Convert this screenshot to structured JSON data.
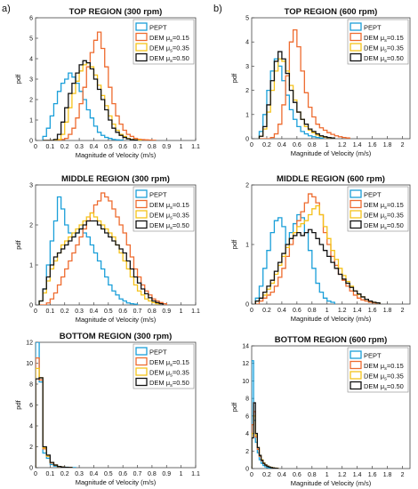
{
  "figure": {
    "panel_labels": [
      "a)",
      "b)"
    ]
  },
  "style": {
    "colors": {
      "PEPT": "#1a9fd9",
      "DEM015": "#ee6b2f",
      "DEM035": "#f5c21a",
      "DEM050": "#111111"
    }
  },
  "legend_entries": [
    {
      "key": "PEPT",
      "prefix": "PEPT",
      "sub": "",
      "suffix": ""
    },
    {
      "key": "DEM015",
      "prefix": "DEM μ",
      "sub": "s",
      "suffix": "=0.15"
    },
    {
      "key": "DEM035",
      "prefix": "DEM μ",
      "sub": "s",
      "suffix": "=0.35"
    },
    {
      "key": "DEM050",
      "prefix": "DEM μ",
      "sub": "s",
      "suffix": "=0.50"
    }
  ],
  "chart_data": [
    {
      "type": "line",
      "step": true,
      "title": "TOP REGION (300 rpm)",
      "xlabel": "Magnitude of Velocity (m/s)",
      "ylabel": "pdf",
      "xlim": [
        0,
        1.1
      ],
      "ylim": [
        0,
        6
      ],
      "xticks": [
        "0",
        "0.1",
        "0.2",
        "0.3",
        "0.4",
        "0.5",
        "0.6",
        "0.7",
        "0.8",
        "0.9",
        "1",
        "1.1"
      ],
      "yticks": [
        "0",
        "1",
        "2",
        "3",
        "4",
        "5",
        "6"
      ],
      "legend": "top-right",
      "bin_start": 0.05,
      "bin_width": 0.025,
      "series": [
        {
          "key": "PEPT",
          "values": [
            0.2,
            0.6,
            1.2,
            1.8,
            2.4,
            2.8,
            3.0,
            3.3,
            3.1,
            2.8,
            2.4,
            2.0,
            1.5,
            1.1,
            0.7,
            0.4,
            0.25,
            0.15,
            0.1,
            0.05,
            0.03,
            0.02
          ]
        },
        {
          "key": "DEM015",
          "values": [
            0,
            0,
            0,
            0,
            0,
            0.05,
            0.1,
            0.3,
            0.6,
            1.1,
            1.8,
            2.6,
            3.6,
            4.3,
            4.9,
            5.3,
            4.5,
            3.6,
            2.6,
            1.8,
            1.2,
            0.8,
            0.5,
            0.3,
            0.2,
            0.1,
            0.06,
            0.04,
            0.03,
            0.02,
            0.01
          ]
        },
        {
          "key": "DEM035",
          "values": [
            0,
            0,
            0,
            0,
            0.05,
            0.3,
            0.9,
            1.6,
            2.3,
            2.9,
            3.4,
            3.7,
            3.8,
            3.6,
            3.2,
            2.7,
            2.2,
            1.7,
            1.2,
            0.8,
            0.5,
            0.3,
            0.2,
            0.1,
            0.05,
            0.03,
            0.02
          ]
        },
        {
          "key": "DEM050",
          "values": [
            0,
            0,
            0,
            0.05,
            0.3,
            0.9,
            1.6,
            2.3,
            2.8,
            3.3,
            3.7,
            3.9,
            3.8,
            3.5,
            3.0,
            2.5,
            2.0,
            1.5,
            1.0,
            0.6,
            0.4,
            0.25,
            0.15,
            0.08,
            0.04,
            0.02
          ]
        }
      ]
    },
    {
      "type": "line",
      "step": true,
      "title": "TOP REGION (600 rpm)",
      "xlabel": "Magnitude of Velocity (m/s)",
      "ylabel": "pdf",
      "xlim": [
        0,
        2.1
      ],
      "ylim": [
        0,
        5
      ],
      "xticks": [
        "0",
        "0.2",
        "0.4",
        "0.6",
        "0.8",
        "1",
        "1.2",
        "1.4",
        "1.6",
        "1.8",
        "2"
      ],
      "yticks": [
        "0",
        "1",
        "2",
        "3",
        "4",
        "5"
      ],
      "legend": "top-right",
      "bin_start": 0.1,
      "bin_width": 0.05,
      "series": [
        {
          "key": "PEPT",
          "values": [
            0.3,
            1.0,
            2.0,
            2.8,
            3.3,
            3.0,
            2.4,
            1.8,
            1.2,
            0.8,
            0.5,
            0.3,
            0.2,
            0.12,
            0.08,
            0.05,
            0.03
          ]
        },
        {
          "key": "DEM015",
          "values": [
            0,
            0,
            0,
            0.05,
            0.2,
            0.6,
            1.4,
            2.6,
            4.0,
            4.5,
            3.8,
            2.8,
            1.9,
            1.3,
            0.9,
            0.6,
            0.45,
            0.35,
            0.25,
            0.18,
            0.12,
            0.08,
            0.05,
            0.03
          ]
        },
        {
          "key": "DEM035",
          "values": [
            0.1,
            0.4,
            1.1,
            2.0,
            2.8,
            3.3,
            3.2,
            2.8,
            2.2,
            1.6,
            1.1,
            0.8,
            0.5,
            0.35,
            0.25,
            0.15,
            0.1,
            0.06,
            0.04,
            0.02
          ]
        },
        {
          "key": "DEM050",
          "values": [
            0.1,
            0.5,
            1.4,
            2.4,
            3.2,
            3.6,
            3.3,
            2.7,
            2.0,
            1.5,
            1.1,
            0.8,
            0.6,
            0.4,
            0.3,
            0.2,
            0.12,
            0.08,
            0.05,
            0.03
          ]
        }
      ]
    },
    {
      "type": "line",
      "step": true,
      "title": "MIDDLE REGION (300 rpm)",
      "xlabel": "Magnitude of Velocity (m/s)",
      "ylabel": "pdf",
      "xlim": [
        0,
        1.1
      ],
      "ylim": [
        0,
        3
      ],
      "xticks": [
        "0",
        "0.1",
        "0.2",
        "0.3",
        "0.4",
        "0.5",
        "0.6",
        "0.7",
        "0.8",
        "0.9",
        "1",
        "1.1"
      ],
      "yticks": [
        "0",
        "1",
        "2",
        "3"
      ],
      "legend": "top-right",
      "bin_start": 0.025,
      "bin_width": 0.025,
      "series": [
        {
          "key": "PEPT",
          "values": [
            0.1,
            0.4,
            1.0,
            1.6,
            2.1,
            2.7,
            2.4,
            2.0,
            1.8,
            1.7,
            1.8,
            1.9,
            1.8,
            1.7,
            1.5,
            1.3,
            1.1,
            0.9,
            0.7,
            0.5,
            0.35,
            0.25,
            0.15,
            0.1,
            0.05,
            0.03,
            0.02
          ]
        },
        {
          "key": "DEM015",
          "values": [
            0,
            0,
            0.05,
            0.15,
            0.3,
            0.5,
            0.7,
            0.9,
            1.1,
            1.3,
            1.5,
            1.7,
            1.9,
            2.1,
            2.3,
            2.5,
            2.6,
            2.8,
            2.7,
            2.6,
            2.4,
            2.2,
            2.0,
            1.8,
            1.5,
            1.2,
            0.9,
            0.7,
            0.5,
            0.35,
            0.25,
            0.15,
            0.1,
            0.06,
            0.03
          ]
        },
        {
          "key": "DEM035",
          "values": [
            0.1,
            0.3,
            0.6,
            0.9,
            1.1,
            1.3,
            1.5,
            1.6,
            1.7,
            1.8,
            1.9,
            2.0,
            2.1,
            2.2,
            2.3,
            2.2,
            2.1,
            2.0,
            1.9,
            1.8,
            1.7,
            1.5,
            1.3,
            1.1,
            0.9,
            0.7,
            0.5,
            0.35,
            0.25,
            0.15,
            0.1,
            0.06,
            0.03
          ]
        },
        {
          "key": "DEM050",
          "values": [
            0.1,
            0.4,
            0.7,
            1.0,
            1.2,
            1.3,
            1.4,
            1.5,
            1.6,
            1.7,
            1.8,
            1.9,
            2.0,
            2.1,
            2.1,
            2.1,
            2.0,
            1.9,
            1.8,
            1.7,
            1.6,
            1.5,
            1.4,
            1.3,
            1.1,
            0.9,
            0.7,
            0.55,
            0.4,
            0.28,
            0.18,
            0.1,
            0.06,
            0.03
          ]
        }
      ]
    },
    {
      "type": "line",
      "step": true,
      "title": "MIDDLE REGION (600 rpm)",
      "xlabel": "Magnitude of Velocity (m/s)",
      "ylabel": "pdf",
      "xlim": [
        0,
        2.1
      ],
      "ylim": [
        0,
        2
      ],
      "xticks": [
        "0",
        "0.2",
        "0.4",
        "0.6",
        "0.8",
        "1",
        "1.2",
        "1.4",
        "1.6",
        "1.8",
        "2"
      ],
      "yticks": [
        "0",
        "1",
        "2"
      ],
      "legend": "top-right",
      "bin_start": 0.05,
      "bin_width": 0.05,
      "series": [
        {
          "key": "PEPT",
          "values": [
            0.1,
            0.3,
            0.6,
            0.9,
            1.2,
            1.4,
            1.45,
            1.3,
            1.0,
            1.2,
            1.35,
            1.5,
            1.45,
            1.2,
            0.9,
            0.6,
            0.35,
            0.2,
            0.1,
            0.05,
            0.03
          ]
        },
        {
          "key": "DEM015",
          "values": [
            0,
            0.05,
            0.1,
            0.15,
            0.2,
            0.3,
            0.45,
            0.6,
            0.8,
            1.0,
            1.2,
            1.4,
            1.55,
            1.7,
            1.85,
            1.8,
            1.7,
            1.5,
            1.2,
            1.0,
            0.8,
            0.65,
            0.5,
            0.4,
            0.3,
            0.22,
            0.15,
            0.1,
            0.07,
            0.05,
            0.03,
            0.02
          ]
        },
        {
          "key": "DEM035",
          "values": [
            0.05,
            0.1,
            0.15,
            0.25,
            0.35,
            0.5,
            0.65,
            0.8,
            0.95,
            1.1,
            1.2,
            1.3,
            1.35,
            1.4,
            1.5,
            1.6,
            1.65,
            1.5,
            1.3,
            1.1,
            0.9,
            0.75,
            0.6,
            0.48,
            0.38,
            0.3,
            0.22,
            0.16,
            0.12,
            0.08,
            0.05,
            0.03,
            0.02
          ]
        },
        {
          "key": "DEM050",
          "values": [
            0.05,
            0.1,
            0.2,
            0.3,
            0.4,
            0.55,
            0.7,
            0.85,
            1.0,
            1.1,
            1.15,
            1.2,
            1.15,
            1.2,
            1.25,
            1.2,
            1.1,
            1.0,
            0.9,
            0.8,
            0.7,
            0.6,
            0.5,
            0.42,
            0.35,
            0.28,
            0.22,
            0.17,
            0.12,
            0.08,
            0.05,
            0.03,
            0.02
          ]
        }
      ]
    },
    {
      "type": "line",
      "step": true,
      "title": "BOTTOM REGION (300 rpm)",
      "xlabel": "Magnitude of Velocity (m/s)",
      "ylabel": "pdf",
      "xlim": [
        0,
        1.1
      ],
      "ylim": [
        0,
        12
      ],
      "xticks": [
        "0",
        "0.1",
        "0.2",
        "0.3",
        "0.4",
        "0.5",
        "0.6",
        "0.7",
        "0.8",
        "0.9",
        "1",
        "1.1"
      ],
      "yticks": [
        "0",
        "2",
        "4",
        "6",
        "8",
        "10",
        "12"
      ],
      "legend": "top-right",
      "bin_start": 0,
      "bin_width": 0.025,
      "series": [
        {
          "key": "PEPT",
          "values": [
            12.0,
            8.2,
            1.4,
            0.9,
            0.3,
            0.15,
            0.1,
            0.06,
            0.04,
            0.02,
            0.01
          ]
        },
        {
          "key": "DEM015",
          "values": [
            10.5,
            8.4,
            1.8,
            1.1,
            0.45,
            0.25,
            0.12,
            0.06,
            0.03,
            0.02
          ]
        },
        {
          "key": "DEM035",
          "values": [
            9.5,
            8.6,
            1.9,
            1.1,
            0.5,
            0.25,
            0.12,
            0.06,
            0.03,
            0.02
          ]
        },
        {
          "key": "DEM050",
          "values": [
            8.5,
            8.6,
            2.0,
            1.2,
            0.5,
            0.25,
            0.12,
            0.06,
            0.03,
            0.02
          ]
        }
      ]
    },
    {
      "type": "line",
      "step": true,
      "title": "BOTTOM REGION (600 rpm)",
      "xlabel": "Magnitude of Velocity (m/s)",
      "ylabel": "pdf",
      "xlim": [
        0,
        2.1
      ],
      "ylim": [
        0,
        14
      ],
      "xticks": [
        "0",
        "0.2",
        "0.4",
        "0.6",
        "0.8",
        "1",
        "1.2",
        "1.4",
        "1.6",
        "1.8",
        "2"
      ],
      "yticks": [
        "0",
        "2",
        "4",
        "6",
        "8",
        "10",
        "12",
        "14"
      ],
      "legend": "top-right",
      "bin_start": 0,
      "bin_width": 0.025,
      "series": [
        {
          "key": "PEPT",
          "values": [
            12.3,
            5.5,
            3.0,
            1.8,
            1.0,
            0.6,
            0.35,
            0.2,
            0.12,
            0.07,
            0.04,
            0.02
          ]
        },
        {
          "key": "DEM015",
          "values": [
            5.0,
            6.5,
            3.6,
            2.2,
            1.4,
            0.9,
            0.6,
            0.4,
            0.28,
            0.18,
            0.12,
            0.08,
            0.05,
            0.03
          ]
        },
        {
          "key": "DEM035",
          "values": [
            4.0,
            6.0,
            3.8,
            2.4,
            1.5,
            1.0,
            0.65,
            0.42,
            0.28,
            0.18,
            0.12,
            0.08,
            0.05,
            0.03
          ]
        },
        {
          "key": "DEM050",
          "values": [
            3.5,
            7.5,
            4.0,
            2.4,
            1.5,
            0.95,
            0.6,
            0.4,
            0.26,
            0.17,
            0.11,
            0.07,
            0.04,
            0.02
          ]
        }
      ]
    }
  ]
}
